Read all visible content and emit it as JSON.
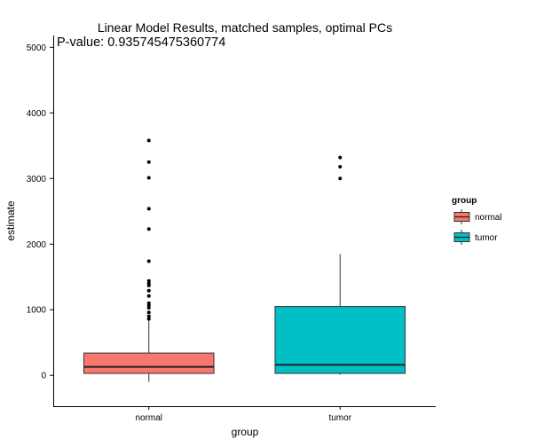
{
  "chart_data": {
    "type": "box",
    "title": "Linear Model Results, matched samples, optimal PCs",
    "annotation": "P-value: 0.935745475360774",
    "xlabel": "group",
    "ylabel": "estimate",
    "categories": [
      "normal",
      "tumor"
    ],
    "ylim": [
      -470,
      5180
    ],
    "yticks": [
      0,
      1000,
      2000,
      3000,
      4000,
      5000
    ],
    "grid": false,
    "legend": {
      "title": "group",
      "position": "right",
      "entries": [
        {
          "label": "normal",
          "color": "#F8766D"
        },
        {
          "label": "tumor",
          "color": "#00BFC4"
        }
      ]
    },
    "boxes": [
      {
        "group": "normal",
        "color": "#F8766D",
        "whisker_low": -100,
        "q1": 30,
        "median": 130,
        "q3": 340,
        "whisker_high": 830,
        "outliers": [
          860,
          900,
          960,
          1030,
          1070,
          1100,
          1210,
          1290,
          1370,
          1400,
          1440,
          1740,
          2230,
          2540,
          3010,
          3250,
          3580
        ]
      },
      {
        "group": "tumor",
        "color": "#00BFC4",
        "whisker_low": 10,
        "q1": 30,
        "median": 160,
        "q3": 1050,
        "whisker_high": 1850,
        "outliers": [
          3000,
          3180,
          3320
        ]
      }
    ]
  }
}
